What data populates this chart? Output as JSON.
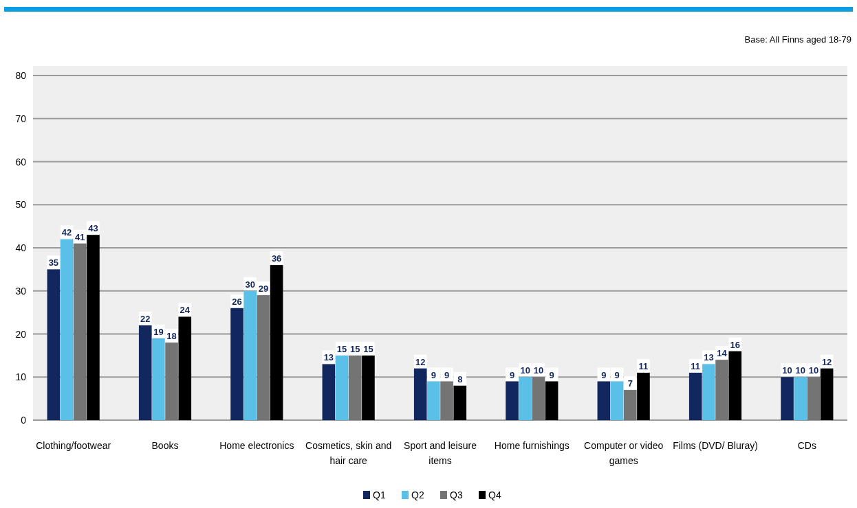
{
  "chart_data": {
    "type": "bar",
    "annotations": [
      "Base: All Finns aged 18-79"
    ],
    "categories": [
      "Clothing/footwear",
      "Books",
      "Home electronics",
      "Cosmetics, skin and hair care",
      "Sport and leisure items",
      "Home furnishings",
      "Computer or video games",
      "Films (DVD/ Bluray)",
      "CDs"
    ],
    "series": [
      {
        "name": "Q1",
        "color": "#12275e",
        "values": [
          35,
          22,
          26,
          13,
          12,
          9,
          9,
          11,
          10
        ]
      },
      {
        "name": "Q2",
        "color": "#5bc0e8",
        "values": [
          42,
          19,
          30,
          15,
          9,
          10,
          9,
          13,
          10
        ]
      },
      {
        "name": "Q3",
        "color": "#747474",
        "values": [
          41,
          18,
          29,
          15,
          9,
          10,
          7,
          14,
          10
        ]
      },
      {
        "name": "Q4",
        "color": "#000000",
        "values": [
          43,
          24,
          36,
          15,
          8,
          9,
          11,
          16,
          12
        ]
      }
    ],
    "ylim": [
      0,
      80
    ],
    "yticks": [
      0,
      10,
      20,
      30,
      40,
      50,
      60,
      70,
      80
    ],
    "grid": "y",
    "legend": "bottom",
    "data_labels": true
  }
}
